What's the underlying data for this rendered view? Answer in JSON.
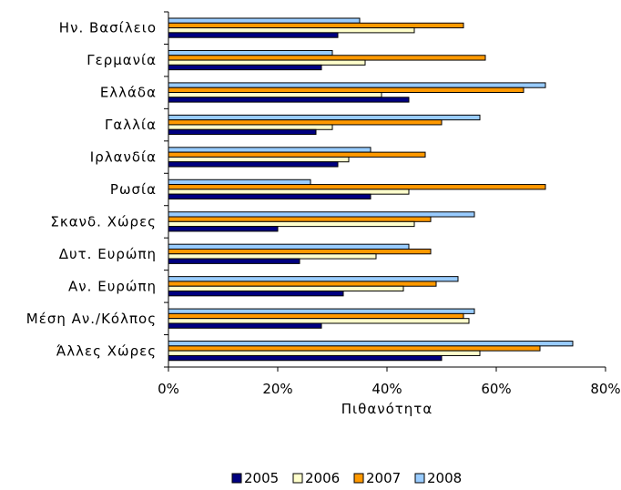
{
  "chart_data": {
    "type": "bar",
    "orientation": "horizontal",
    "categories": [
      "Ην. Βασίλειο",
      "Γερμανία",
      "Ελλάδα",
      "Γαλλία",
      "Ιρλανδία",
      "Ρωσία",
      "Σκανδ. Χώρες",
      "Δυτ. Ευρώπη",
      "Αν. Ευρώπη",
      "Μέση Αν./Κόλπος",
      "Άλλες Χώρες"
    ],
    "series": [
      {
        "name": "2005",
        "color": "#000080",
        "values": [
          31,
          28,
          44,
          27,
          31,
          37,
          20,
          24,
          32,
          28,
          50
        ]
      },
      {
        "name": "2006",
        "color": "#FFFFCC",
        "values": [
          45,
          36,
          39,
          30,
          33,
          44,
          45,
          38,
          43,
          55,
          57
        ]
      },
      {
        "name": "2007",
        "color": "#FF9900",
        "values": [
          54,
          58,
          65,
          50,
          47,
          69,
          48,
          48,
          49,
          54,
          68
        ]
      },
      {
        "name": "2008",
        "color": "#99CCFF",
        "values": [
          35,
          30,
          69,
          57,
          37,
          26,
          56,
          44,
          53,
          56,
          74
        ]
      }
    ],
    "xlabel": "Πιθανότητα",
    "ylabel": "",
    "xlim": [
      0,
      80
    ],
    "xticks": [
      "0%",
      "20%",
      "40%",
      "60%",
      "80%"
    ],
    "legend": "bottom",
    "grid": false
  }
}
